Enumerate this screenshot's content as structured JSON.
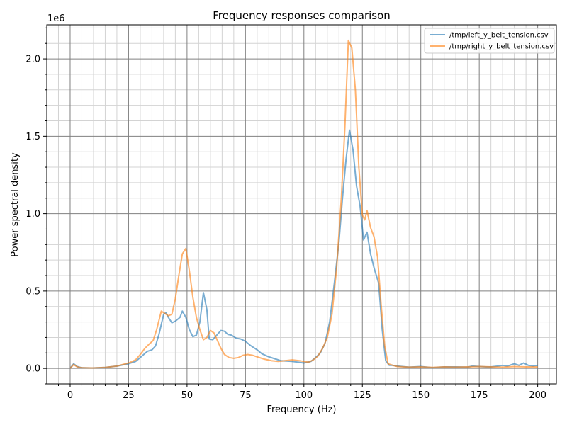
{
  "chart_data": {
    "type": "line",
    "title": "Frequency responses comparison",
    "xlabel": "Frequency (Hz)",
    "ylabel": "Power spectral density",
    "y_offset_label": "1e6",
    "xlim": [
      -10,
      208
    ],
    "ylim": [
      -0.1,
      2.22
    ],
    "x_ticks": [
      0,
      25,
      50,
      75,
      100,
      125,
      150,
      175,
      200
    ],
    "x_tick_labels": [
      "0",
      "25",
      "50",
      "75",
      "100",
      "125",
      "150",
      "175",
      "200"
    ],
    "y_ticks": [
      0,
      0.5,
      1.0,
      1.5,
      2.0
    ],
    "y_tick_labels": [
      "0.0",
      "0.5",
      "1.0",
      "1.5",
      "2.0"
    ],
    "grid": "major and minor",
    "legend_position": "top-right",
    "series": [
      {
        "name": "/tmp/left_y_belt_tension.csv",
        "color": "#1f77b4",
        "points": [
          [
            0,
            0.0
          ],
          [
            1.5,
            0.03
          ],
          [
            3,
            0.012
          ],
          [
            5,
            0.004
          ],
          [
            10,
            0.003
          ],
          [
            15,
            0.006
          ],
          [
            20,
            0.015
          ],
          [
            25,
            0.03
          ],
          [
            28,
            0.045
          ],
          [
            30,
            0.07
          ],
          [
            33,
            0.11
          ],
          [
            35,
            0.12
          ],
          [
            36.5,
            0.145
          ],
          [
            38,
            0.22
          ],
          [
            40,
            0.35
          ],
          [
            41,
            0.36
          ],
          [
            42,
            0.33
          ],
          [
            43.5,
            0.295
          ],
          [
            45,
            0.305
          ],
          [
            47,
            0.33
          ],
          [
            48,
            0.37
          ],
          [
            49.5,
            0.33
          ],
          [
            51,
            0.25
          ],
          [
            52.5,
            0.205
          ],
          [
            54,
            0.215
          ],
          [
            55.5,
            0.3
          ],
          [
            57,
            0.49
          ],
          [
            58.5,
            0.38
          ],
          [
            59.5,
            0.19
          ],
          [
            61,
            0.185
          ],
          [
            63,
            0.22
          ],
          [
            64.5,
            0.245
          ],
          [
            66,
            0.24
          ],
          [
            67.5,
            0.22
          ],
          [
            69,
            0.215
          ],
          [
            71,
            0.195
          ],
          [
            73,
            0.19
          ],
          [
            75,
            0.175
          ],
          [
            77,
            0.15
          ],
          [
            80,
            0.12
          ],
          [
            82,
            0.095
          ],
          [
            85,
            0.075
          ],
          [
            88,
            0.06
          ],
          [
            90,
            0.05
          ],
          [
            95,
            0.045
          ],
          [
            100,
            0.035
          ],
          [
            103,
            0.045
          ],
          [
            105,
            0.07
          ],
          [
            107,
            0.1
          ],
          [
            109,
            0.16
          ],
          [
            111,
            0.3
          ],
          [
            113,
            0.55
          ],
          [
            115,
            0.82
          ],
          [
            116.5,
            1.1
          ],
          [
            118,
            1.35
          ],
          [
            119.5,
            1.54
          ],
          [
            121,
            1.41
          ],
          [
            122.5,
            1.18
          ],
          [
            124,
            1.05
          ],
          [
            125.5,
            0.83
          ],
          [
            127,
            0.88
          ],
          [
            128.5,
            0.74
          ],
          [
            130,
            0.65
          ],
          [
            132,
            0.55
          ],
          [
            133.5,
            0.25
          ],
          [
            135,
            0.05
          ],
          [
            136.5,
            0.02
          ],
          [
            138,
            0.02
          ],
          [
            140,
            0.015
          ],
          [
            145,
            0.008
          ],
          [
            150,
            0.012
          ],
          [
            155,
            0.005
          ],
          [
            160,
            0.01
          ],
          [
            165,
            0.01
          ],
          [
            170,
            0.008
          ],
          [
            172,
            0.015
          ],
          [
            175,
            0.012
          ],
          [
            178,
            0.01
          ],
          [
            180,
            0.01
          ],
          [
            183,
            0.015
          ],
          [
            185,
            0.02
          ],
          [
            187,
            0.015
          ],
          [
            190,
            0.03
          ],
          [
            192,
            0.02
          ],
          [
            194,
            0.035
          ],
          [
            196,
            0.02
          ],
          [
            198,
            0.015
          ],
          [
            200,
            0.02
          ]
        ]
      },
      {
        "name": "/tmp/right_y_belt_tension.csv",
        "color": "#ff7f0e",
        "points": [
          [
            0,
            0.0
          ],
          [
            1.5,
            0.025
          ],
          [
            3,
            0.01
          ],
          [
            5,
            0.004
          ],
          [
            10,
            0.003
          ],
          [
            15,
            0.006
          ],
          [
            20,
            0.015
          ],
          [
            25,
            0.035
          ],
          [
            28,
            0.055
          ],
          [
            30,
            0.09
          ],
          [
            32,
            0.13
          ],
          [
            34,
            0.16
          ],
          [
            35.5,
            0.18
          ],
          [
            37,
            0.25
          ],
          [
            39,
            0.37
          ],
          [
            40.5,
            0.355
          ],
          [
            42,
            0.34
          ],
          [
            43.5,
            0.35
          ],
          [
            45,
            0.45
          ],
          [
            46.5,
            0.6
          ],
          [
            48,
            0.74
          ],
          [
            49.5,
            0.775
          ],
          [
            51,
            0.63
          ],
          [
            52.5,
            0.46
          ],
          [
            54,
            0.33
          ],
          [
            55.5,
            0.25
          ],
          [
            57,
            0.185
          ],
          [
            58.5,
            0.2
          ],
          [
            60,
            0.245
          ],
          [
            61.5,
            0.23
          ],
          [
            63,
            0.18
          ],
          [
            64.5,
            0.13
          ],
          [
            66,
            0.09
          ],
          [
            68,
            0.07
          ],
          [
            70,
            0.065
          ],
          [
            72,
            0.07
          ],
          [
            74,
            0.085
          ],
          [
            76,
            0.09
          ],
          [
            78,
            0.085
          ],
          [
            80,
            0.075
          ],
          [
            83,
            0.06
          ],
          [
            86,
            0.05
          ],
          [
            89,
            0.045
          ],
          [
            92,
            0.05
          ],
          [
            95,
            0.055
          ],
          [
            98,
            0.05
          ],
          [
            100,
            0.045
          ],
          [
            102,
            0.04
          ],
          [
            104,
            0.055
          ],
          [
            106,
            0.08
          ],
          [
            108,
            0.13
          ],
          [
            110,
            0.2
          ],
          [
            112,
            0.35
          ],
          [
            114,
            0.65
          ],
          [
            116,
            1.1
          ],
          [
            117.5,
            1.55
          ],
          [
            119,
            2.12
          ],
          [
            120.5,
            2.07
          ],
          [
            122,
            1.8
          ],
          [
            123.5,
            1.3
          ],
          [
            125,
            0.99
          ],
          [
            126,
            0.96
          ],
          [
            127,
            1.02
          ],
          [
            128.5,
            0.91
          ],
          [
            130,
            0.85
          ],
          [
            131.5,
            0.72
          ],
          [
            133,
            0.42
          ],
          [
            134.5,
            0.15
          ],
          [
            136,
            0.03
          ],
          [
            138,
            0.02
          ],
          [
            140,
            0.012
          ],
          [
            145,
            0.008
          ],
          [
            150,
            0.01
          ],
          [
            155,
            0.006
          ],
          [
            160,
            0.01
          ],
          [
            165,
            0.008
          ],
          [
            170,
            0.01
          ],
          [
            175,
            0.012
          ],
          [
            180,
            0.01
          ],
          [
            185,
            0.008
          ],
          [
            190,
            0.012
          ],
          [
            195,
            0.01
          ],
          [
            200,
            0.01
          ]
        ]
      }
    ]
  }
}
